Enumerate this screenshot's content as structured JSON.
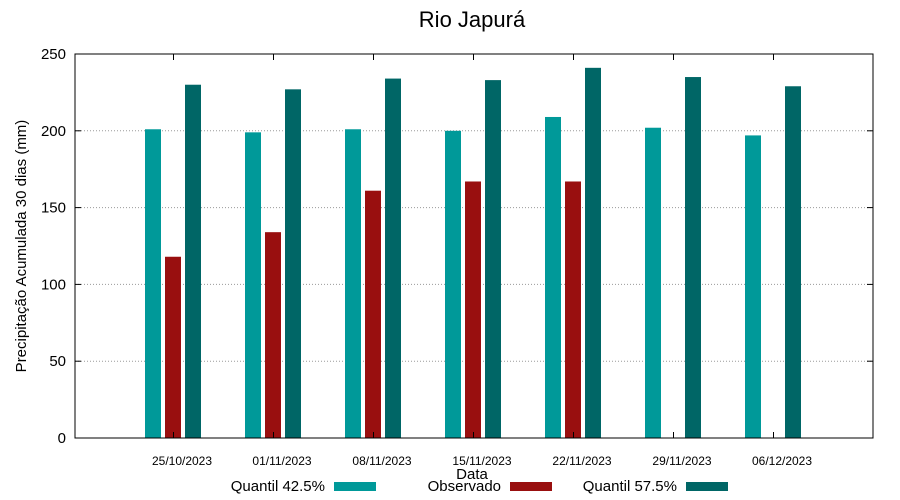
{
  "chart_data": {
    "type": "bar",
    "title": "Rio Japurá",
    "xlabel": "Data",
    "ylabel": "Precipitação Acumulada 30 dias (mm)",
    "ylim": [
      0,
      250
    ],
    "yticks": [
      0,
      50,
      100,
      150,
      200,
      250
    ],
    "grid": true,
    "legend_position": "bottom",
    "categories": [
      "25/10/2023",
      "01/11/2023",
      "08/11/2023",
      "15/11/2023",
      "22/11/2023",
      "29/11/2023",
      "06/12/2023"
    ],
    "series": [
      {
        "name": "Quantil 42.5%",
        "color": "#009999",
        "values": [
          201,
          199,
          201,
          200,
          209,
          202,
          197
        ]
      },
      {
        "name": "Observado",
        "color": "#990f0f",
        "values": [
          118,
          134,
          161,
          167,
          167,
          null,
          null
        ]
      },
      {
        "name": "Quantil 57.5%",
        "color": "#006666",
        "values": [
          230,
          227,
          234,
          233,
          241,
          235,
          229
        ]
      }
    ]
  }
}
